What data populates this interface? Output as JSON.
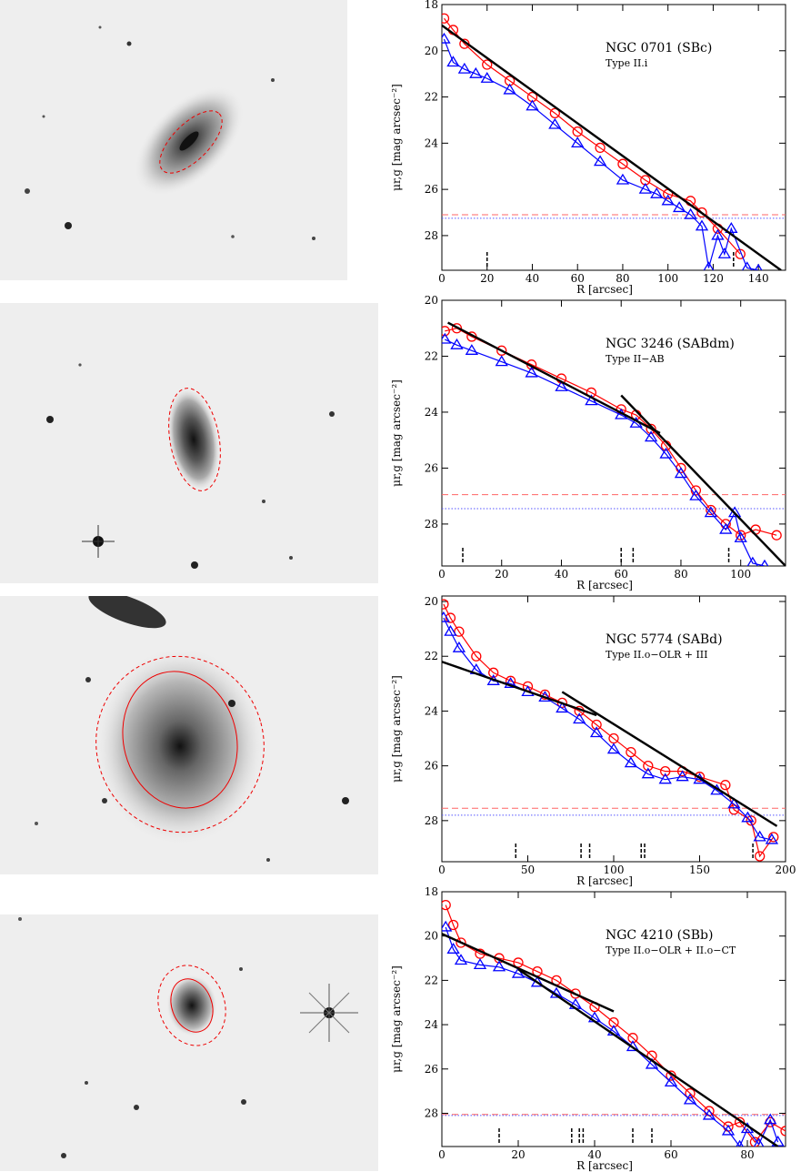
{
  "chart_data": [
    {
      "type": "scatter",
      "title": "NGC 0701 (SBc)",
      "subtitle": "Type II.i",
      "xlabel": "R [arcsec]",
      "ylabel": "μr,g [mag arcsec⁻²]",
      "xlim": [
        0,
        152
      ],
      "ylim": [
        18,
        29.5
      ],
      "y_inverted": true,
      "xticks": [
        0,
        20,
        40,
        60,
        80,
        100,
        120,
        140
      ],
      "yticks": [
        18,
        20,
        22,
        24,
        26,
        28
      ],
      "limit_r": 27.1,
      "limit_g": 27.25,
      "vmarks": [
        20,
        129
      ],
      "fits": [
        {
          "x": [
            0,
            150
          ],
          "y": [
            18.9,
            29.5
          ]
        }
      ],
      "series": [
        {
          "color": "#ff0000",
          "marker": "circle",
          "x": [
            1,
            5,
            10,
            20,
            30,
            40,
            50,
            60,
            70,
            80,
            90,
            100,
            110,
            115,
            122,
            132
          ],
          "y": [
            18.6,
            19.1,
            19.7,
            20.6,
            21.3,
            22.0,
            22.7,
            23.5,
            24.2,
            24.9,
            25.6,
            26.2,
            26.5,
            27.0,
            27.7,
            28.8
          ]
        },
        {
          "color": "#0000ff",
          "marker": "triangle",
          "x": [
            1,
            5,
            10,
            15,
            20,
            30,
            40,
            50,
            60,
            70,
            80,
            90,
            95,
            100,
            105,
            110,
            115,
            118,
            122,
            125,
            128,
            135,
            140
          ],
          "y": [
            19.5,
            20.5,
            20.8,
            21.0,
            21.2,
            21.7,
            22.4,
            23.2,
            24.0,
            24.8,
            25.6,
            26.0,
            26.2,
            26.5,
            26.8,
            27.1,
            27.6,
            29.4,
            28.0,
            28.8,
            27.7,
            29.4,
            29.5
          ]
        }
      ]
    },
    {
      "type": "scatter",
      "title": "NGC 3246 (SABdm)",
      "subtitle": "Type II−AB",
      "xlabel": "R [arcsec]",
      "ylabel": "μr,g [mag arcsec⁻²]",
      "xlim": [
        0,
        115
      ],
      "ylim": [
        20,
        29.5
      ],
      "y_inverted": true,
      "xticks": [
        0,
        20,
        40,
        60,
        80,
        100
      ],
      "yticks": [
        20,
        22,
        24,
        26,
        28
      ],
      "limit_r": 26.95,
      "limit_g": 27.45,
      "vmarks": [
        7,
        60,
        64,
        96
      ],
      "fits": [
        {
          "x": [
            2,
            73
          ],
          "y": [
            20.8,
            24.75
          ]
        },
        {
          "x": [
            60,
            115
          ],
          "y": [
            23.4,
            29.5
          ]
        }
      ],
      "series": [
        {
          "color": "#ff0000",
          "marker": "circle",
          "x": [
            1,
            5,
            10,
            20,
            30,
            40,
            50,
            60,
            65,
            70,
            75,
            80,
            85,
            90,
            95,
            100,
            105,
            112
          ],
          "y": [
            21.1,
            21.0,
            21.3,
            21.8,
            22.3,
            22.8,
            23.3,
            23.9,
            24.1,
            24.6,
            25.2,
            26.0,
            26.8,
            27.5,
            28.0,
            28.4,
            28.2,
            28.4
          ]
        },
        {
          "color": "#0000ff",
          "marker": "triangle",
          "x": [
            1,
            5,
            10,
            20,
            30,
            40,
            50,
            60,
            65,
            70,
            75,
            80,
            85,
            90,
            95,
            98,
            100,
            104,
            108
          ],
          "y": [
            21.4,
            21.6,
            21.8,
            22.2,
            22.6,
            23.1,
            23.6,
            24.1,
            24.4,
            24.9,
            25.5,
            26.2,
            27.0,
            27.6,
            28.2,
            27.6,
            28.5,
            29.4,
            29.5
          ]
        }
      ]
    },
    {
      "type": "scatter",
      "title": "NGC 5774 (SABd)",
      "subtitle": "Type II.o−OLR + III",
      "xlabel": "R [arcsec]",
      "ylabel": "μr,g [mag arcsec⁻²]",
      "xlim": [
        0,
        200
      ],
      "ylim": [
        19.8,
        29.5
      ],
      "y_inverted": true,
      "xticks": [
        0,
        50,
        100,
        150,
        200
      ],
      "yticks": [
        20,
        22,
        24,
        26,
        28
      ],
      "limit_r": 27.55,
      "limit_g": 27.8,
      "vmarks": [
        43,
        81,
        86,
        116,
        118,
        181
      ],
      "fits": [
        {
          "x": [
            0,
            90
          ],
          "y": [
            22.2,
            24.15
          ]
        },
        {
          "x": [
            70,
            195
          ],
          "y": [
            23.3,
            28.2
          ]
        }
      ],
      "series": [
        {
          "color": "#ff0000",
          "marker": "circle",
          "x": [
            1,
            5,
            10,
            20,
            30,
            40,
            50,
            60,
            70,
            80,
            90,
            100,
            110,
            120,
            130,
            140,
            150,
            165,
            170,
            180,
            185,
            193
          ],
          "y": [
            20.1,
            20.6,
            21.1,
            22.0,
            22.6,
            22.9,
            23.1,
            23.4,
            23.7,
            24.0,
            24.5,
            25.0,
            25.5,
            26.0,
            26.2,
            26.2,
            26.4,
            26.7,
            27.6,
            28.0,
            29.3,
            28.6
          ]
        },
        {
          "color": "#0000ff",
          "marker": "triangle",
          "x": [
            1,
            5,
            10,
            20,
            30,
            40,
            50,
            60,
            70,
            80,
            90,
            100,
            110,
            120,
            130,
            140,
            150,
            160,
            170,
            178,
            185,
            192
          ],
          "y": [
            20.6,
            21.1,
            21.7,
            22.5,
            22.9,
            23.0,
            23.3,
            23.5,
            23.9,
            24.3,
            24.8,
            25.4,
            25.9,
            26.3,
            26.5,
            26.4,
            26.5,
            26.9,
            27.4,
            27.9,
            28.6,
            28.7
          ]
        }
      ]
    },
    {
      "type": "scatter",
      "title": "NGC 4210 (SBb)",
      "subtitle": "Type II.o−OLR + II.o−CT",
      "xlabel": "R [arcsec]",
      "ylabel": "μr,g [mag arcsec⁻²]",
      "xlim": [
        0,
        90
      ],
      "ylim": [
        18,
        29.5
      ],
      "y_inverted": true,
      "xticks": [
        0,
        20,
        40,
        60,
        80
      ],
      "yticks": [
        18,
        20,
        22,
        24,
        26,
        28
      ],
      "limit_r": 28.05,
      "limit_g": 28.1,
      "vmarks": [
        15,
        34,
        36,
        37,
        50,
        55
      ],
      "fits": [
        {
          "x": [
            0,
            45
          ],
          "y": [
            19.9,
            23.4
          ]
        },
        {
          "x": [
            20,
            88
          ],
          "y": [
            21.5,
            29.5
          ]
        }
      ],
      "series": [
        {
          "color": "#ff0000",
          "marker": "circle",
          "x": [
            1,
            3,
            5,
            10,
            15,
            20,
            25,
            30,
            35,
            40,
            45,
            50,
            55,
            60,
            65,
            70,
            75,
            78,
            82,
            86,
            90
          ],
          "y": [
            18.6,
            19.5,
            20.3,
            20.8,
            21.0,
            21.2,
            21.6,
            22.0,
            22.6,
            23.2,
            23.9,
            24.6,
            25.4,
            26.3,
            27.1,
            27.9,
            28.6,
            28.4,
            29.3,
            28.4,
            28.8
          ]
        },
        {
          "color": "#0000ff",
          "marker": "triangle",
          "x": [
            1,
            3,
            5,
            10,
            15,
            20,
            25,
            30,
            35,
            40,
            45,
            50,
            55,
            60,
            65,
            70,
            75,
            78,
            80,
            83,
            86,
            88
          ],
          "y": [
            19.6,
            20.6,
            21.1,
            21.3,
            21.4,
            21.7,
            22.1,
            22.6,
            23.1,
            23.7,
            24.3,
            25.0,
            25.8,
            26.6,
            27.4,
            28.1,
            28.8,
            29.5,
            28.7,
            29.4,
            28.3,
            29.3
          ]
        }
      ]
    }
  ]
}
